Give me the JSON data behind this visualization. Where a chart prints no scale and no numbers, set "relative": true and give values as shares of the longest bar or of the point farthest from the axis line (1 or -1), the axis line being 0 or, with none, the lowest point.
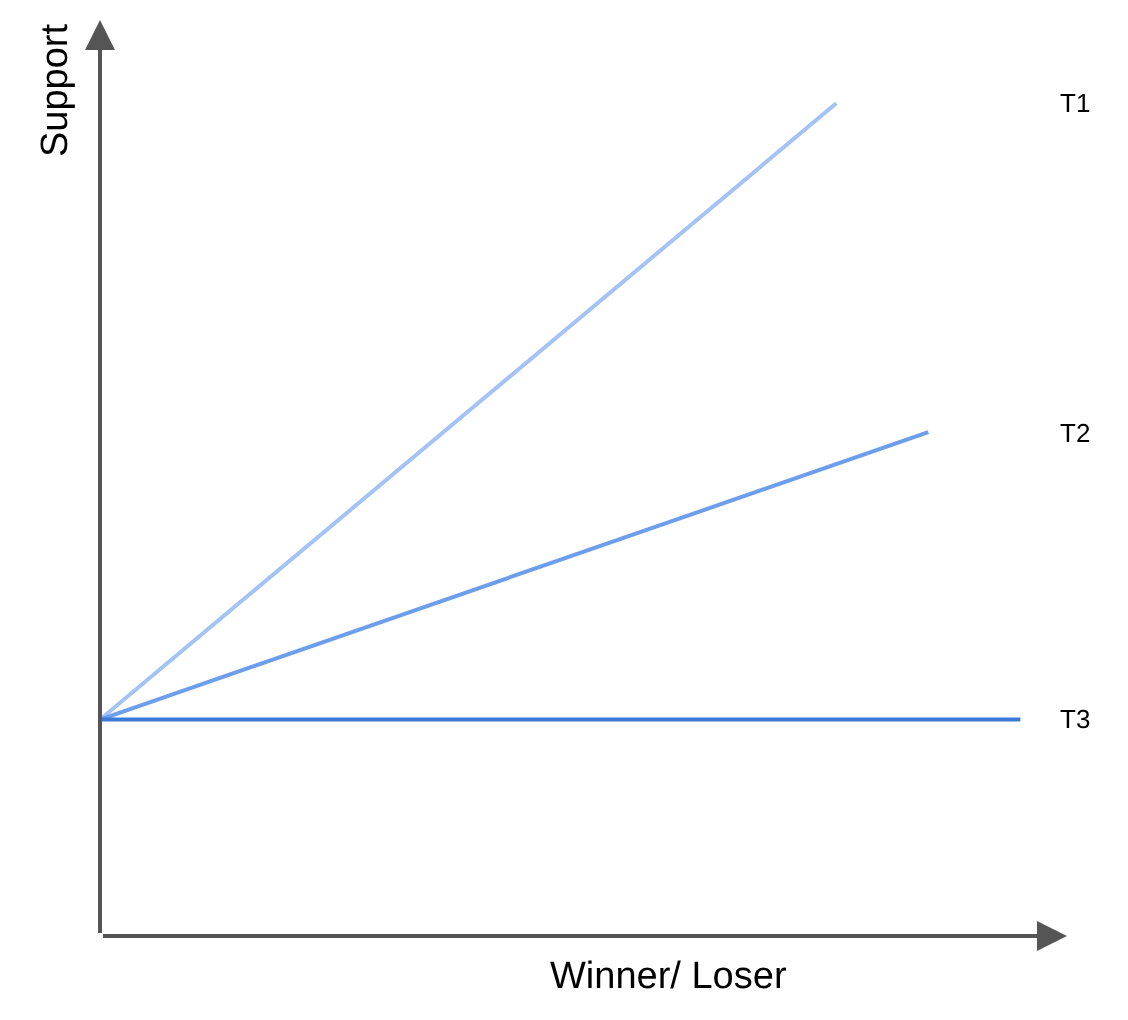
{
  "chart_data": {
    "type": "line",
    "relative": true,
    "xlabel": "Winner/ Loser",
    "ylabel": "Support",
    "categories": [
      null,
      null,
      null,
      null,
      null,
      null,
      null,
      null,
      null,
      null,
      null
    ],
    "legend": false,
    "marker": "none",
    "line_style": "solid",
    "series": [
      {
        "name": "T1",
        "color": "#a4c2f4",
        "values": [
          0.26,
          null,
          null,
          null,
          null,
          null,
          null,
          null,
          1,
          null,
          null
        ]
      },
      {
        "name": "T2",
        "color": "#6d9eeb",
        "values": [
          0.26,
          null,
          null,
          null,
          null,
          null,
          null,
          null,
          null,
          0.605,
          null
        ]
      },
      {
        "name": "T3",
        "color": "#3c78d8",
        "values": [
          0.26,
          null,
          null,
          null,
          null,
          null,
          null,
          null,
          null,
          null,
          0.26
        ]
      }
    ]
  }
}
